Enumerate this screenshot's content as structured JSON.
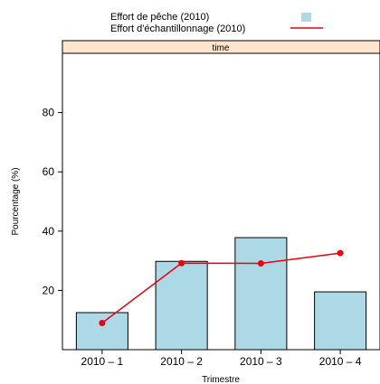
{
  "chart_data": {
    "type": "bar",
    "xlabel": "Trimestre",
    "ylabel": "Pourcentage (%)",
    "strip_label": "time",
    "categories": [
      "2010 – 1",
      "2010 – 2",
      "2010 – 3",
      "2010 – 4"
    ],
    "y_ticks": [
      "20",
      "40",
      "60",
      "80"
    ],
    "ylim": [
      0,
      100
    ],
    "legend_position": "top",
    "series": [
      {
        "name": "Effort de pêche (2010)",
        "kind": "bar",
        "color": "#add8e6",
        "values": [
          12.5,
          29.8,
          37.8,
          19.5
        ]
      },
      {
        "name": "Effort d'échantillonnage (2010)",
        "kind": "line",
        "color": "#e8000b",
        "values": [
          9.0,
          29.2,
          29.1,
          32.6
        ]
      }
    ],
    "strip_color": "#ffe5cc"
  }
}
